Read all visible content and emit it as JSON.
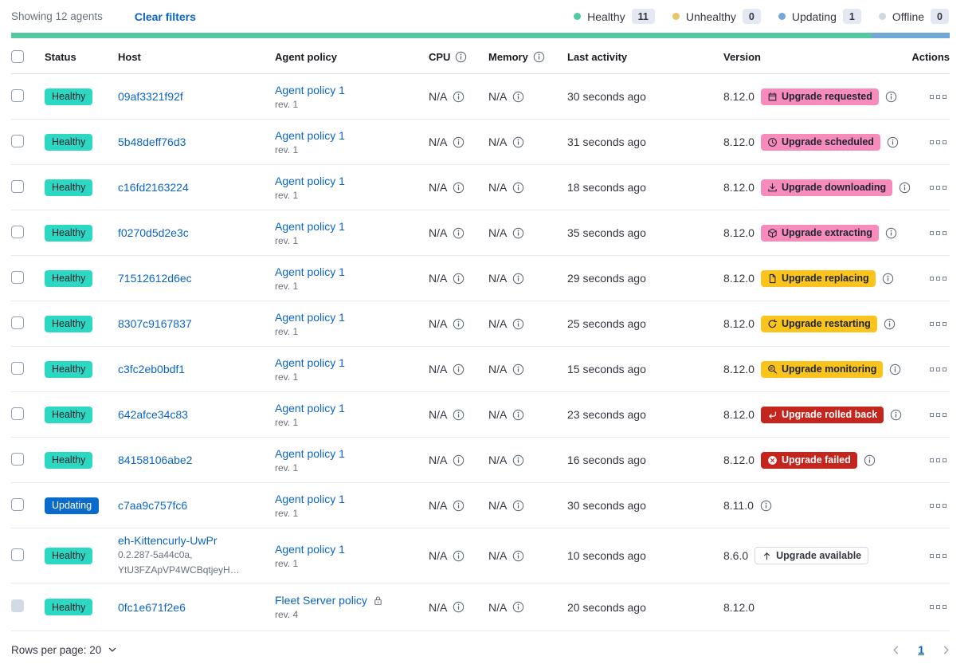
{
  "toolbar": {
    "showing_text": "Showing 12 agents",
    "clear_filters_label": "Clear filters"
  },
  "legend": {
    "items": [
      {
        "label": "Healthy",
        "count": "11",
        "color": "#54c8a2"
      },
      {
        "label": "Unhealthy",
        "count": "0",
        "color": "#e9c46a"
      },
      {
        "label": "Updating",
        "count": "1",
        "color": "#73a8d6"
      },
      {
        "label": "Offline",
        "count": "0",
        "color": "#cfd7e2"
      }
    ]
  },
  "health_bar": {
    "segments": [
      {
        "name": "healthy",
        "color": "#54c8a2",
        "fraction": 0.9167
      },
      {
        "name": "updating",
        "color": "#73a8d6",
        "fraction": 0.0833
      }
    ]
  },
  "table": {
    "columns": {
      "status": "Status",
      "host": "Host",
      "policy": "Agent policy",
      "cpu": "CPU",
      "memory": "Memory",
      "last_activity": "Last activity",
      "version": "Version",
      "actions": "Actions"
    },
    "rows": [
      {
        "status": {
          "label": "Healthy",
          "variant": "healthy"
        },
        "host": {
          "name": "09af3321f92f",
          "sublines": []
        },
        "policy": {
          "name": "Agent policy 1",
          "rev": "rev. 1",
          "locked": false
        },
        "cpu": "N/A",
        "memory": "N/A",
        "last_activity": "30 seconds ago",
        "version": "8.12.0",
        "upgrade": {
          "label": "Upgrade requested",
          "variant": "pink",
          "icon": "calendar"
        },
        "version_info": true,
        "checkbox_disabled": false
      },
      {
        "status": {
          "label": "Healthy",
          "variant": "healthy"
        },
        "host": {
          "name": "5b48deff76d3",
          "sublines": []
        },
        "policy": {
          "name": "Agent policy 1",
          "rev": "rev. 1",
          "locked": false
        },
        "cpu": "N/A",
        "memory": "N/A",
        "last_activity": "31 seconds ago",
        "version": "8.12.0",
        "upgrade": {
          "label": "Upgrade scheduled",
          "variant": "pink",
          "icon": "clock"
        },
        "version_info": true,
        "checkbox_disabled": false
      },
      {
        "status": {
          "label": "Healthy",
          "variant": "healthy"
        },
        "host": {
          "name": "c16fd2163224",
          "sublines": []
        },
        "policy": {
          "name": "Agent policy 1",
          "rev": "rev. 1",
          "locked": false
        },
        "cpu": "N/A",
        "memory": "N/A",
        "last_activity": "18 seconds ago",
        "version": "8.12.0",
        "upgrade": {
          "label": "Upgrade downloading",
          "variant": "pink",
          "icon": "download"
        },
        "version_info": true,
        "checkbox_disabled": false
      },
      {
        "status": {
          "label": "Healthy",
          "variant": "healthy"
        },
        "host": {
          "name": "f0270d5d2e3c",
          "sublines": []
        },
        "policy": {
          "name": "Agent policy 1",
          "rev": "rev. 1",
          "locked": false
        },
        "cpu": "N/A",
        "memory": "N/A",
        "last_activity": "35 seconds ago",
        "version": "8.12.0",
        "upgrade": {
          "label": "Upgrade extracting",
          "variant": "pink",
          "icon": "package"
        },
        "version_info": true,
        "checkbox_disabled": false
      },
      {
        "status": {
          "label": "Healthy",
          "variant": "healthy"
        },
        "host": {
          "name": "71512612d6ec",
          "sublines": []
        },
        "policy": {
          "name": "Agent policy 1",
          "rev": "rev. 1",
          "locked": false
        },
        "cpu": "N/A",
        "memory": "N/A",
        "last_activity": "29 seconds ago",
        "version": "8.12.0",
        "upgrade": {
          "label": "Upgrade replacing",
          "variant": "yellow",
          "icon": "copy"
        },
        "version_info": true,
        "checkbox_disabled": false
      },
      {
        "status": {
          "label": "Healthy",
          "variant": "healthy"
        },
        "host": {
          "name": "8307c9167837",
          "sublines": []
        },
        "policy": {
          "name": "Agent policy 1",
          "rev": "rev. 1",
          "locked": false
        },
        "cpu": "N/A",
        "memory": "N/A",
        "last_activity": "25 seconds ago",
        "version": "8.12.0",
        "upgrade": {
          "label": "Upgrade restarting",
          "variant": "yellow",
          "icon": "refresh"
        },
        "version_info": true,
        "checkbox_disabled": false
      },
      {
        "status": {
          "label": "Healthy",
          "variant": "healthy"
        },
        "host": {
          "name": "c3fc2eb0bdf1",
          "sublines": []
        },
        "policy": {
          "name": "Agent policy 1",
          "rev": "rev. 1",
          "locked": false
        },
        "cpu": "N/A",
        "memory": "N/A",
        "last_activity": "15 seconds ago",
        "version": "8.12.0",
        "upgrade": {
          "label": "Upgrade monitoring",
          "variant": "yellow",
          "icon": "inspect"
        },
        "version_info": true,
        "checkbox_disabled": false
      },
      {
        "status": {
          "label": "Healthy",
          "variant": "healthy"
        },
        "host": {
          "name": "642afce34c83",
          "sublines": []
        },
        "policy": {
          "name": "Agent policy 1",
          "rev": "rev. 1",
          "locked": false
        },
        "cpu": "N/A",
        "memory": "N/A",
        "last_activity": "23 seconds ago",
        "version": "8.12.0",
        "upgrade": {
          "label": "Upgrade rolled back",
          "variant": "red",
          "icon": "return"
        },
        "version_info": true,
        "checkbox_disabled": false
      },
      {
        "status": {
          "label": "Healthy",
          "variant": "healthy"
        },
        "host": {
          "name": "84158106abe2",
          "sublines": []
        },
        "policy": {
          "name": "Agent policy 1",
          "rev": "rev. 1",
          "locked": false
        },
        "cpu": "N/A",
        "memory": "N/A",
        "last_activity": "16 seconds ago",
        "version": "8.12.0",
        "upgrade": {
          "label": "Upgrade failed",
          "variant": "red",
          "icon": "error"
        },
        "version_info": true,
        "checkbox_disabled": false
      },
      {
        "status": {
          "label": "Updating",
          "variant": "updating"
        },
        "host": {
          "name": "c7aa9c757fc6",
          "sublines": []
        },
        "policy": {
          "name": "Agent policy 1",
          "rev": "rev. 1",
          "locked": false
        },
        "cpu": "N/A",
        "memory": "N/A",
        "last_activity": "30 seconds ago",
        "version": "8.11.0",
        "upgrade": null,
        "version_info": true,
        "checkbox_disabled": false
      },
      {
        "status": {
          "label": "Healthy",
          "variant": "healthy"
        },
        "host": {
          "name": "eh-Kittencurly-UwPr",
          "sublines": [
            "0.2.287-5a44c0a,",
            "YtU3FZApVP4WCBqtjeyH…"
          ]
        },
        "policy": {
          "name": "Agent policy 1",
          "rev": "rev. 1",
          "locked": false
        },
        "cpu": "N/A",
        "memory": "N/A",
        "last_activity": "10 seconds ago",
        "version": "8.6.0",
        "upgrade": {
          "label": "Upgrade available",
          "variant": "hollow",
          "icon": "arrow-up"
        },
        "version_info": false,
        "checkbox_disabled": false
      },
      {
        "status": {
          "label": "Healthy",
          "variant": "healthy"
        },
        "host": {
          "name": "0fc1e671f2e6",
          "sublines": []
        },
        "policy": {
          "name": "Fleet Server policy",
          "rev": "rev. 4",
          "locked": true
        },
        "cpu": "N/A",
        "memory": "N/A",
        "last_activity": "20 seconds ago",
        "version": "8.12.0",
        "upgrade": null,
        "version_info": false,
        "checkbox_disabled": true
      }
    ]
  },
  "footer": {
    "rows_per_page_label": "Rows per page: 20",
    "page_number": "1"
  },
  "colors": {
    "link": "#0b64c5",
    "healthy_badge": "#2dd8c3",
    "updating_badge": "#0a6bcb",
    "pink_badge": "#f78cbc",
    "yellow_badge": "#fbc41c",
    "red_badge": "#c4251d",
    "bar_healthy": "#54c8a2",
    "bar_updating": "#73a8d6"
  }
}
